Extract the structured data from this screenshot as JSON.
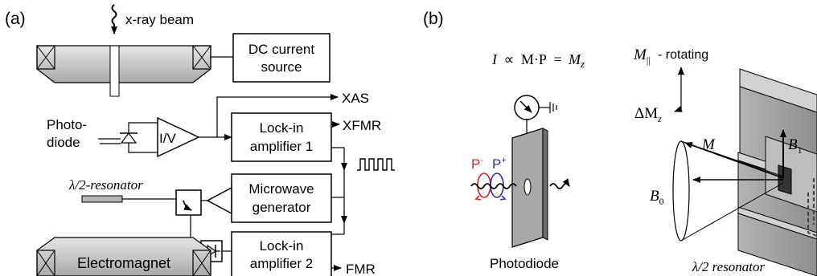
{
  "panel_a": {
    "label": "(a)",
    "xray_beam": "x-ray beam",
    "dc_source": [
      "DC current",
      "source"
    ],
    "xas": "XAS",
    "photodiode": [
      "Photo-",
      "diode"
    ],
    "iv": "I/V",
    "lockin1": [
      "Lock-in",
      "amplifier 1"
    ],
    "xfmr": "XFMR",
    "microwave": [
      "Microwave",
      "generator"
    ],
    "resonator": "λ/2-resonator",
    "lockin2": [
      "Lock-in",
      "amplifier 2"
    ],
    "fmr": "FMR",
    "electromagnet": "Electromagnet"
  },
  "panel_b": {
    "label": "(b)",
    "formula": "I ∝ M·P = Mz",
    "formula_i": "I",
    "formula_prop": "∝",
    "formula_mp": "M·P",
    "formula_eq": "=",
    "formula_mz": "M",
    "formula_mz_sub": "z",
    "p_minus": "P",
    "p_minus_sup": "-",
    "p_plus": "P",
    "p_plus_sup": "+",
    "photodiode": "Photodiode",
    "m_par": "M",
    "m_par_sub": "||",
    "rotating": "- rotating",
    "delta_mz": "ΔM",
    "delta_mz_sub": "z",
    "m": "M",
    "b1": "B",
    "b1_sub": "1",
    "b0": "B",
    "b0_sub": "0",
    "resonator": "λ/2 resonator",
    "colors": {
      "p_minus": "#c0272d",
      "p_plus": "#2e3192"
    }
  }
}
